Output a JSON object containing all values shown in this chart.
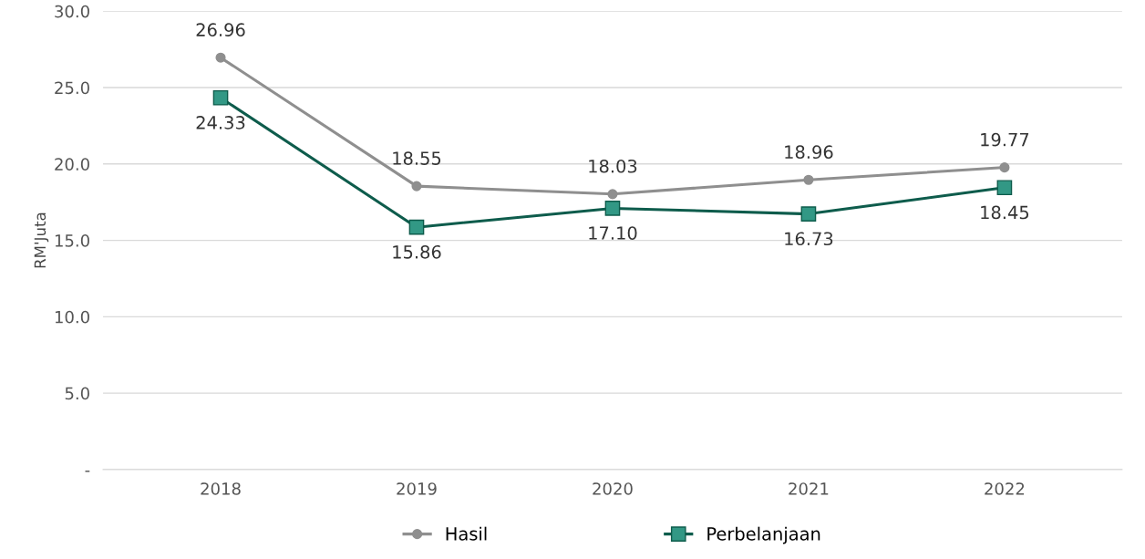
{
  "chart_data": {
    "type": "line",
    "ylabel": "RM'Juta",
    "categories": [
      "2018",
      "2019",
      "2020",
      "2021",
      "2022"
    ],
    "series": [
      {
        "name": "Hasil",
        "color": "#8f8f8f",
        "marker": "circle",
        "values": [
          26.96,
          18.55,
          18.03,
          18.96,
          19.77
        ],
        "value_labels": [
          "26.96",
          "18.55",
          "18.03",
          "18.96",
          "19.77"
        ]
      },
      {
        "name": "Perbelanjaan",
        "color": "#0e5c4c",
        "marker": "square",
        "values": [
          24.33,
          15.86,
          17.1,
          16.73,
          18.45
        ],
        "value_labels": [
          "24.33",
          "15.86",
          "17.10",
          "16.73",
          "18.45"
        ]
      }
    ],
    "ylim": [
      0,
      30
    ],
    "yticks": [
      {
        "value": 0,
        "label": "-"
      },
      {
        "value": 5,
        "label": "5.0"
      },
      {
        "value": 10,
        "label": "10.0"
      },
      {
        "value": 15,
        "label": "15.0"
      },
      {
        "value": 20,
        "label": "20.0"
      },
      {
        "value": 25,
        "label": "25.0"
      },
      {
        "value": 30,
        "label": "30.0"
      }
    ],
    "grid": "y",
    "legend": "bottom",
    "line_style": "solid"
  }
}
